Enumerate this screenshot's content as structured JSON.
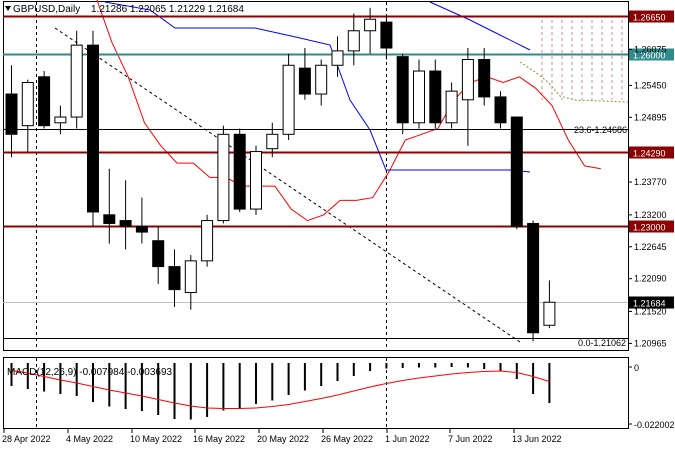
{
  "header": {
    "symbol": "GBPUSD,Daily",
    "ohlc": "1.21286 1.22065 1.21229 1.21684"
  },
  "macd": {
    "label": "MACD(12,26,9) -0.007984 -0.003693",
    "scale_labels": [
      "0",
      "-0.022002"
    ]
  },
  "price_axis": {
    "ticks": [
      "1.26075",
      "1.25450",
      "1.24895",
      "1.23770",
      "1.23200",
      "1.22645",
      "1.22090",
      "1.21520",
      "1.20965"
    ]
  },
  "date_axis": {
    "labels": [
      "28 Apr 2022",
      "4 May 2022",
      "10 May 2022",
      "16 May 2022",
      "20 May 2022",
      "26 May 2022",
      "1 Jun 2022",
      "7 Jun 2022",
      "13 Jun 2022"
    ]
  },
  "levels": [
    {
      "label": "1.26650",
      "color": "#8b0000",
      "style": "solid"
    },
    {
      "label": "1.26000",
      "color": "#2e8b8b",
      "style": "solid"
    },
    {
      "label": "1.24290",
      "color": "#8b0000",
      "style": "solid"
    },
    {
      "label": "1.23000",
      "color": "#8b0000",
      "style": "solid"
    },
    {
      "label": "1.21684",
      "color": "#000000",
      "style": "current"
    }
  ],
  "fib_labels": {
    "upper": "23.6-1.24686",
    "lower": "0.0-1.21062"
  },
  "colors": {
    "bull_candle": "#ffffff",
    "bear_candle": "#000000",
    "tenkan": "#ff0000",
    "kijun": "#0000ff",
    "trendline": "#000000",
    "macd_signal": "#ff0000"
  },
  "chart_data": {
    "type": "candlestick",
    "symbol": "GBPUSD",
    "timeframe": "Daily",
    "ylim": [
      1.2085,
      1.269
    ],
    "candles": [
      {
        "o": 1.253,
        "h": 1.258,
        "l": 1.242,
        "c": 1.246
      },
      {
        "o": 1.2475,
        "h": 1.2555,
        "l": 1.243,
        "c": 1.255
      },
      {
        "o": 1.256,
        "h": 1.257,
        "l": 1.247,
        "c": 1.2475
      },
      {
        "o": 1.248,
        "h": 1.251,
        "l": 1.246,
        "c": 1.249
      },
      {
        "o": 1.249,
        "h": 1.264,
        "l": 1.247,
        "c": 1.2615
      },
      {
        "o": 1.2615,
        "h": 1.264,
        "l": 1.23,
        "c": 1.2325
      },
      {
        "o": 1.232,
        "h": 1.24,
        "l": 1.227,
        "c": 1.2305
      },
      {
        "o": 1.231,
        "h": 1.238,
        "l": 1.226,
        "c": 1.23
      },
      {
        "o": 1.23,
        "h": 1.235,
        "l": 1.227,
        "c": 1.229
      },
      {
        "o": 1.2275,
        "h": 1.23,
        "l": 1.22,
        "c": 1.223
      },
      {
        "o": 1.223,
        "h": 1.226,
        "l": 1.216,
        "c": 1.219
      },
      {
        "o": 1.2185,
        "h": 1.225,
        "l": 1.2155,
        "c": 1.224
      },
      {
        "o": 1.224,
        "h": 1.232,
        "l": 1.223,
        "c": 1.231
      },
      {
        "o": 1.231,
        "h": 1.2475,
        "l": 1.2305,
        "c": 1.246
      },
      {
        "o": 1.246,
        "h": 1.247,
        "l": 1.2325,
        "c": 1.233
      },
      {
        "o": 1.233,
        "h": 1.244,
        "l": 1.232,
        "c": 1.243
      },
      {
        "o": 1.2435,
        "h": 1.248,
        "l": 1.242,
        "c": 1.246
      },
      {
        "o": 1.246,
        "h": 1.26,
        "l": 1.245,
        "c": 1.258
      },
      {
        "o": 1.2575,
        "h": 1.261,
        "l": 1.252,
        "c": 1.253
      },
      {
        "o": 1.253,
        "h": 1.259,
        "l": 1.251,
        "c": 1.258
      },
      {
        "o": 1.258,
        "h": 1.263,
        "l": 1.256,
        "c": 1.2605
      },
      {
        "o": 1.2605,
        "h": 1.267,
        "l": 1.258,
        "c": 1.264
      },
      {
        "o": 1.264,
        "h": 1.268,
        "l": 1.26,
        "c": 1.266
      },
      {
        "o": 1.2655,
        "h": 1.2665,
        "l": 1.259,
        "c": 1.261
      },
      {
        "o": 1.2595,
        "h": 1.26,
        "l": 1.246,
        "c": 1.248
      },
      {
        "o": 1.248,
        "h": 1.259,
        "l": 1.247,
        "c": 1.257
      },
      {
        "o": 1.257,
        "h": 1.259,
        "l": 1.247,
        "c": 1.248
      },
      {
        "o": 1.248,
        "h": 1.255,
        "l": 1.247,
        "c": 1.2535
      },
      {
        "o": 1.252,
        "h": 1.261,
        "l": 1.244,
        "c": 1.259
      },
      {
        "o": 1.259,
        "h": 1.261,
        "l": 1.251,
        "c": 1.2525
      },
      {
        "o": 1.2525,
        "h": 1.2535,
        "l": 1.247,
        "c": 1.248
      },
      {
        "o": 1.249,
        "h": 1.249,
        "l": 1.2295,
        "c": 1.23
      },
      {
        "o": 1.2305,
        "h": 1.231,
        "l": 1.21,
        "c": 1.2115
      },
      {
        "o": 1.2128,
        "h": 1.2206,
        "l": 1.2123,
        "c": 1.2168
      }
    ],
    "macd_histogram": [
      -0.0046,
      -0.0052,
      -0.0057,
      -0.0062,
      -0.0066,
      -0.0078,
      -0.0087,
      -0.0092,
      -0.0096,
      -0.0104,
      -0.0112,
      -0.0113,
      -0.0108,
      -0.0095,
      -0.009,
      -0.0082,
      -0.0075,
      -0.0064,
      -0.0055,
      -0.0046,
      -0.0036,
      -0.0026,
      -0.0016,
      -0.0011,
      -0.001,
      -0.0009,
      -0.0009,
      -0.0008,
      -0.0009,
      -0.0012,
      -0.0017,
      -0.0032,
      -0.0062,
      -0.008
    ],
    "macd_signal": [
      -0.0015,
      -0.002,
      -0.0027,
      -0.0034,
      -0.004,
      -0.0047,
      -0.0054,
      -0.006,
      -0.0066,
      -0.0073,
      -0.008,
      -0.0086,
      -0.009,
      -0.0091,
      -0.0091,
      -0.009,
      -0.0087,
      -0.0083,
      -0.0077,
      -0.0071,
      -0.0064,
      -0.0056,
      -0.0048,
      -0.0041,
      -0.0035,
      -0.003,
      -0.0026,
      -0.0022,
      -0.0019,
      -0.0017,
      -0.0016,
      -0.0019,
      -0.0027,
      -0.0037
    ],
    "macd_ylim": [
      -0.013,
      0.001
    ]
  }
}
